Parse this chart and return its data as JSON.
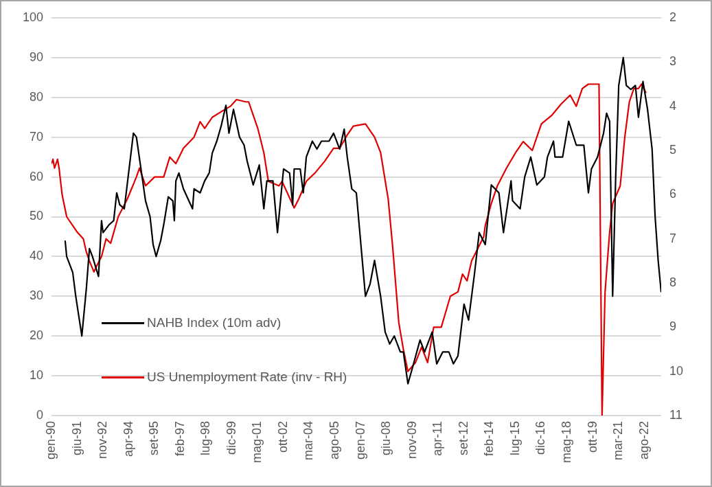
{
  "chart_data": {
    "type": "line",
    "legend": "bottom left",
    "grid": "y",
    "marker": "none",
    "line_style": "solid",
    "xlim": [
      "1990-01",
      "2023-07"
    ],
    "xticks": [
      {
        "value": "1990-01",
        "label": "gen-90"
      },
      {
        "value": "1991-06",
        "label": "giu-91"
      },
      {
        "value": "1992-11",
        "label": "nov-92"
      },
      {
        "value": "1994-04",
        "label": "apr-94"
      },
      {
        "value": "1995-09",
        "label": "set-95"
      },
      {
        "value": "1997-02",
        "label": "feb-97"
      },
      {
        "value": "1998-07",
        "label": "lug-98"
      },
      {
        "value": "1999-12",
        "label": "dic-99"
      },
      {
        "value": "2001-05",
        "label": "mag-01"
      },
      {
        "value": "2002-10",
        "label": "ott-02"
      },
      {
        "value": "2004-03",
        "label": "mar-04"
      },
      {
        "value": "2005-08",
        "label": "ago-05"
      },
      {
        "value": "2007-01",
        "label": "gen-07"
      },
      {
        "value": "2008-06",
        "label": "giu-08"
      },
      {
        "value": "2009-11",
        "label": "nov-09"
      },
      {
        "value": "2011-04",
        "label": "apr-11"
      },
      {
        "value": "2012-09",
        "label": "set-12"
      },
      {
        "value": "2014-02",
        "label": "feb-14"
      },
      {
        "value": "2015-07",
        "label": "lug-15"
      },
      {
        "value": "2016-12",
        "label": "dic-16"
      },
      {
        "value": "2018-05",
        "label": "mag-18"
      },
      {
        "value": "2019-10",
        "label": "ott-19"
      },
      {
        "value": "2021-03",
        "label": "mar-21"
      },
      {
        "value": "2022-08",
        "label": "ago-22"
      }
    ],
    "ylim": [
      0,
      100
    ],
    "yticks": [
      0,
      10,
      20,
      30,
      40,
      50,
      60,
      70,
      80,
      90,
      100
    ],
    "y2lim": [
      11,
      2
    ],
    "y2ticks": [
      2,
      3,
      4,
      5,
      6,
      7,
      8,
      9,
      10,
      11
    ],
    "series": [
      {
        "name": "NAHB Index (10m adv)",
        "color": "#000000",
        "x": [
          "1990-10",
          "1990-11",
          "1991-03",
          "1991-05",
          "1991-09",
          "1991-12",
          "1992-02",
          "1992-04",
          "1992-08",
          "1992-10",
          "1992-11",
          "1993-03",
          "1993-06",
          "1993-08",
          "1993-10",
          "1994-01",
          "1994-07",
          "1994-09",
          "1995-03",
          "1995-06",
          "1995-08",
          "1995-10",
          "1996-01",
          "1996-03",
          "1996-06",
          "1996-09",
          "1996-10",
          "1996-11",
          "1997-01",
          "1997-04",
          "1997-10",
          "1997-11",
          "1998-03",
          "1998-06",
          "1998-09",
          "1998-11",
          "1999-02",
          "1999-05",
          "1999-08",
          "1999-10",
          "2000-01",
          "2000-05",
          "2000-08",
          "2000-10",
          "2001-02",
          "2001-06",
          "2001-09",
          "2001-11",
          "2002-03",
          "2002-06",
          "2002-10",
          "2003-02",
          "2003-04",
          "2003-05",
          "2003-09",
          "2003-11",
          "2004-01",
          "2004-05",
          "2004-08",
          "2004-11",
          "2005-04",
          "2005-07",
          "2005-11",
          "2006-02",
          "2006-04",
          "2006-07",
          "2006-10",
          "2007-01",
          "2007-04",
          "2007-07",
          "2007-10",
          "2008-02",
          "2008-05",
          "2008-08",
          "2008-11",
          "2009-03",
          "2009-05",
          "2009-08",
          "2009-11",
          "2010-04",
          "2010-07",
          "2010-12",
          "2011-03",
          "2011-07",
          "2011-11",
          "2012-02",
          "2012-05",
          "2012-09",
          "2012-12",
          "2013-04",
          "2013-07",
          "2013-11",
          "2014-03",
          "2014-08",
          "2014-11",
          "2015-04",
          "2015-05",
          "2015-10",
          "2016-01",
          "2016-05",
          "2016-09",
          "2017-02",
          "2017-04",
          "2017-08",
          "2017-09",
          "2018-02",
          "2018-06",
          "2018-11",
          "2019-04",
          "2019-07",
          "2019-09",
          "2020-01",
          "2020-05",
          "2020-07",
          "2020-09",
          "2020-11",
          "2021-01",
          "2021-03",
          "2021-06",
          "2021-08",
          "2021-11",
          "2022-02",
          "2022-04",
          "2022-07",
          "2022-10",
          "2023-01",
          "2023-03",
          "2023-05",
          "2023-07"
        ],
        "values": [
          44,
          40,
          36,
          30,
          20,
          32,
          42,
          40,
          35,
          49,
          46,
          48,
          49,
          56,
          53,
          52,
          71,
          70,
          54,
          50,
          43,
          40,
          44,
          48,
          55,
          54,
          49,
          59,
          61,
          57,
          52,
          57,
          56,
          59,
          61,
          66,
          69,
          73,
          78,
          71,
          77,
          70,
          68,
          64,
          58,
          63,
          52,
          59,
          59,
          46,
          62,
          61,
          53,
          62,
          62,
          56,
          65,
          69,
          67,
          69,
          69,
          71,
          67,
          72,
          65,
          57,
          56,
          43,
          30,
          33,
          39,
          30,
          21,
          18,
          20,
          16,
          16,
          8,
          12,
          19,
          16,
          21,
          13,
          16,
          16,
          13,
          15,
          28,
          24,
          36,
          46,
          43,
          58,
          56,
          46,
          59,
          54,
          52,
          60,
          65,
          58,
          60,
          65,
          69,
          65,
          65,
          74,
          68,
          68,
          56,
          62,
          65,
          71,
          76,
          74,
          30,
          60,
          83,
          90,
          83,
          82,
          83,
          75,
          84,
          77,
          67,
          50,
          39,
          31
        ]
      },
      {
        "name": "US Unemployment Rate (inv - RH)",
        "color": "#e00000",
        "axis": "y2",
        "x": [
          "1990-01",
          "1990-02",
          "1990-03",
          "1990-05",
          "1990-06",
          "1990-08",
          "1990-11",
          "1991-03",
          "1991-06",
          "1991-10",
          "1991-12",
          "1992-02",
          "1992-05",
          "1992-07",
          "1992-10",
          "1993-01",
          "1993-04",
          "1993-09",
          "1994-03",
          "1994-09",
          "1994-11",
          "1995-03",
          "1995-09",
          "1996-03",
          "1996-07",
          "1996-11",
          "1997-04",
          "1997-11",
          "1998-03",
          "1998-06",
          "1998-11",
          "1999-06",
          "1999-11",
          "2000-03",
          "2000-09",
          "2000-11",
          "2001-02",
          "2001-05",
          "2001-09",
          "2001-12",
          "2002-07",
          "2002-09",
          "2003-05",
          "2003-08",
          "2004-01",
          "2004-07",
          "2005-01",
          "2005-07",
          "2005-11",
          "2006-04",
          "2006-08",
          "2007-04",
          "2007-10",
          "2008-02",
          "2008-07",
          "2008-10",
          "2009-02",
          "2009-05",
          "2009-08",
          "2010-01",
          "2010-05",
          "2010-09",
          "2011-01",
          "2011-06",
          "2011-12",
          "2012-05",
          "2012-08",
          "2012-11",
          "2013-02",
          "2013-10",
          "2013-11",
          "2014-03",
          "2014-07",
          "2015-01",
          "2015-07",
          "2015-12",
          "2016-06",
          "2016-12",
          "2017-07",
          "2018-01",
          "2018-07",
          "2018-11",
          "2019-03",
          "2019-07",
          "2019-12",
          "2020-02",
          "2020-04",
          "2020-06",
          "2020-09",
          "2020-11",
          "2021-04",
          "2021-07",
          "2021-10",
          "2022-01",
          "2022-04",
          "2022-06",
          "2022-09"
        ],
        "values": [
          5.3,
          5.2,
          5.4,
          5.2,
          5.4,
          6.0,
          6.5,
          6.7,
          6.85,
          7.0,
          7.3,
          7.5,
          7.75,
          7.6,
          7.4,
          7.0,
          7.1,
          6.5,
          6.1,
          5.6,
          5.4,
          5.8,
          5.6,
          5.6,
          5.15,
          5.3,
          4.95,
          4.7,
          4.35,
          4.5,
          4.25,
          4.1,
          4.0,
          3.85,
          3.9,
          3.9,
          4.2,
          4.5,
          5.05,
          5.7,
          5.8,
          5.7,
          6.3,
          6.1,
          5.7,
          5.5,
          5.25,
          4.95,
          4.95,
          4.65,
          4.45,
          4.4,
          4.7,
          5.05,
          6.1,
          7.2,
          8.9,
          9.5,
          10.0,
          9.8,
          9.45,
          9.8,
          9.0,
          9.0,
          8.3,
          8.2,
          7.8,
          7.95,
          7.5,
          6.95,
          6.7,
          6.2,
          5.8,
          5.4,
          5.05,
          4.8,
          5.0,
          4.4,
          4.2,
          3.95,
          3.75,
          4.0,
          3.6,
          3.5,
          3.5,
          3.5,
          11,
          8.2,
          6.85,
          6.2,
          5.8,
          4.7,
          3.9,
          3.6,
          3.6,
          3.5,
          3.7
        ]
      }
    ]
  }
}
